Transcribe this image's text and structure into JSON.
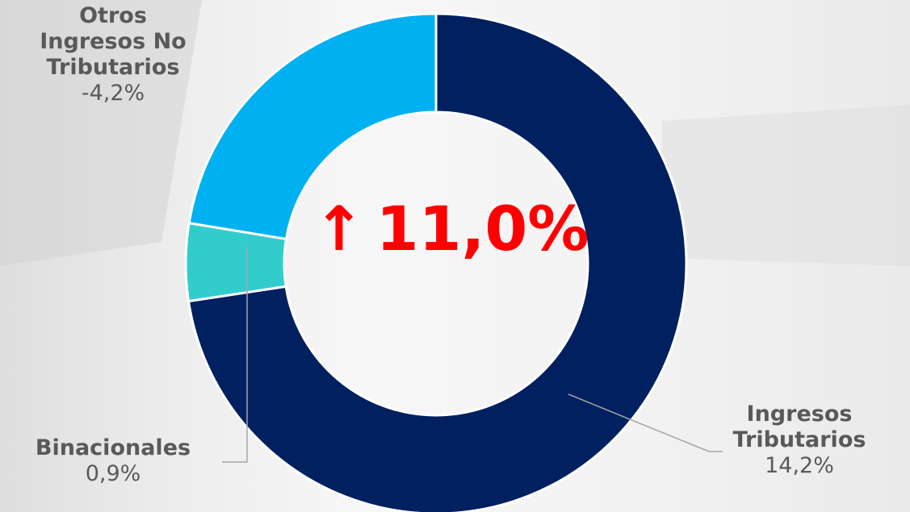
{
  "chart_data": {
    "type": "pie",
    "donut": true,
    "categories": [
      "Ingresos Tributarios",
      "Binacionales",
      "Otros Ingresos No Tributarios"
    ],
    "values": [
      72.6,
      5.0,
      22.4
    ],
    "labels": [
      "14,2%",
      "0,9%",
      "-4,2%"
    ],
    "colors": [
      "#002060",
      "#33cccc",
      "#00b0f0"
    ],
    "center_text": "11,0%",
    "center_arrow": "↑",
    "center_color": "#ff0000",
    "legend": "none"
  }
}
